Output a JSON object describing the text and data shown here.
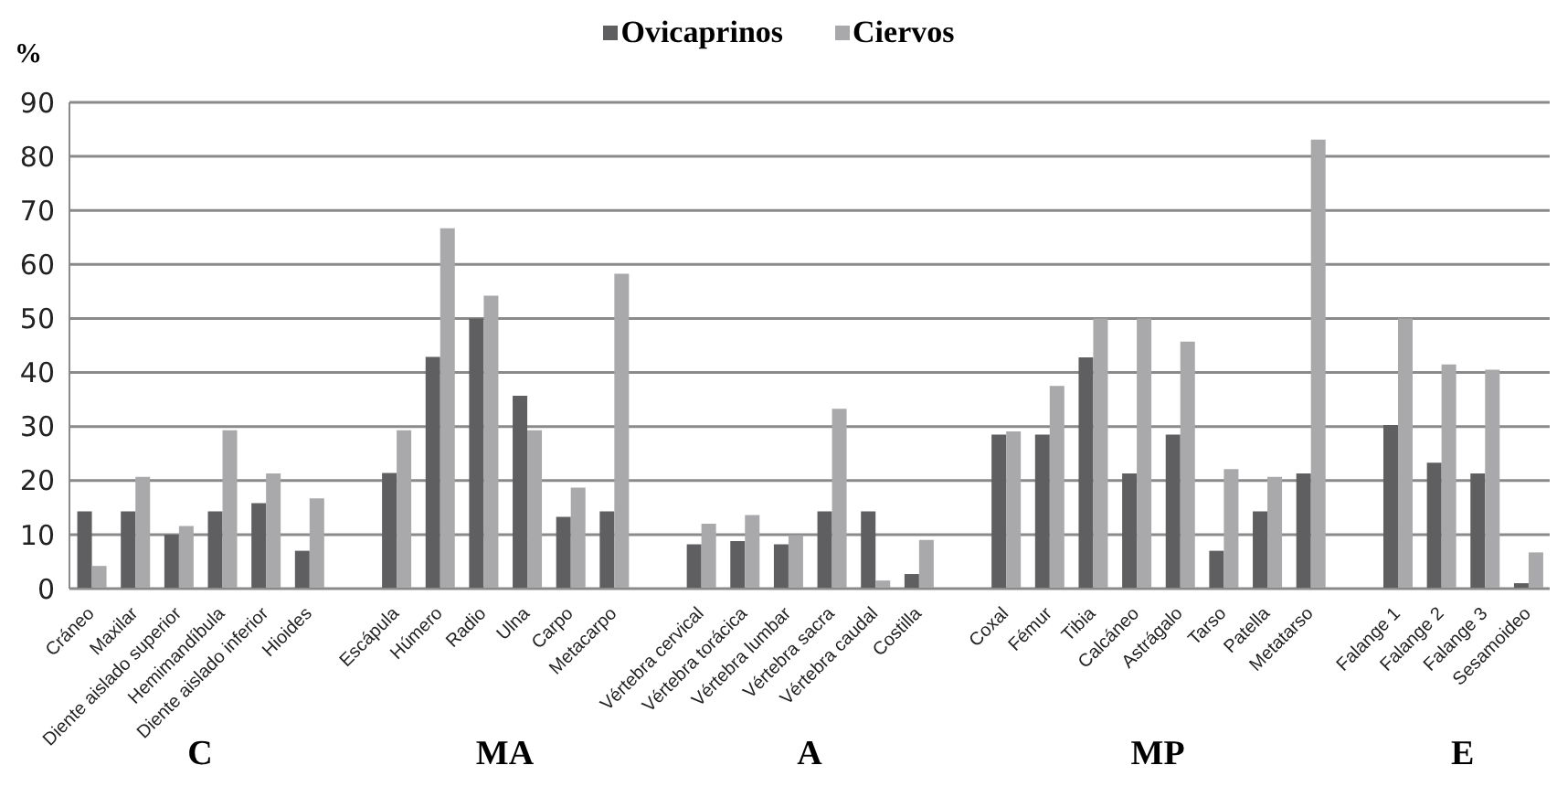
{
  "chart_data": {
    "type": "bar",
    "ylabel": "%",
    "categories": [
      "Cráneo",
      "Maxilar",
      "Diente aislado superior",
      "Hemimandíbula",
      "Diente aislado inferior",
      "Hioides",
      null,
      "Escápula",
      "Húmero",
      "Radio",
      "Ulna",
      "Carpo",
      "Metacarpo",
      null,
      "Vértebra cervical",
      "Vértebra torácica",
      "Vértebra lumbar",
      "Vértebra sacra",
      "Vértebra caudal",
      "Costilla",
      null,
      "Coxal",
      "Fémur",
      "Tibia",
      "Calcáneo",
      "Astrágalo",
      "Tarso",
      "Patella",
      "Metatarso",
      null,
      "Falange 1",
      "Falange 2",
      "Falange 3",
      "Sesamoideo"
    ],
    "series": [
      {
        "name": "Ovicaprinos",
        "color": "#5f5f61",
        "values": [
          14.3,
          14.3,
          10,
          14.3,
          15.8,
          7,
          null,
          21.4,
          42.9,
          50,
          35.7,
          13.3,
          14.3,
          null,
          8.2,
          8.8,
          8.2,
          14.3,
          14.3,
          2.7,
          null,
          28.5,
          28.5,
          42.8,
          21.3,
          28.5,
          7,
          14.3,
          21.3,
          null,
          30.3,
          23.3,
          21.3,
          1
        ]
      },
      {
        "name": "Ciervos",
        "color": "#a9a9ab",
        "values": [
          4.2,
          20.7,
          11.6,
          29.3,
          21.3,
          16.7,
          null,
          29.3,
          66.7,
          54.2,
          29.3,
          18.7,
          58.3,
          null,
          12,
          13.6,
          9.9,
          33.3,
          1.5,
          9,
          null,
          29.1,
          37.5,
          50,
          50,
          45.7,
          22.1,
          20.7,
          83.1,
          null,
          50,
          41.5,
          40.5,
          6.7
        ]
      }
    ],
    "ylim": [
      0,
      90
    ],
    "yticks": [
      0,
      10,
      20,
      30,
      40,
      50,
      60,
      70,
      80,
      90
    ],
    "grid": "y",
    "legend": "top",
    "annotations": [
      "C",
      "MA",
      "A",
      "MP",
      "E"
    ]
  }
}
